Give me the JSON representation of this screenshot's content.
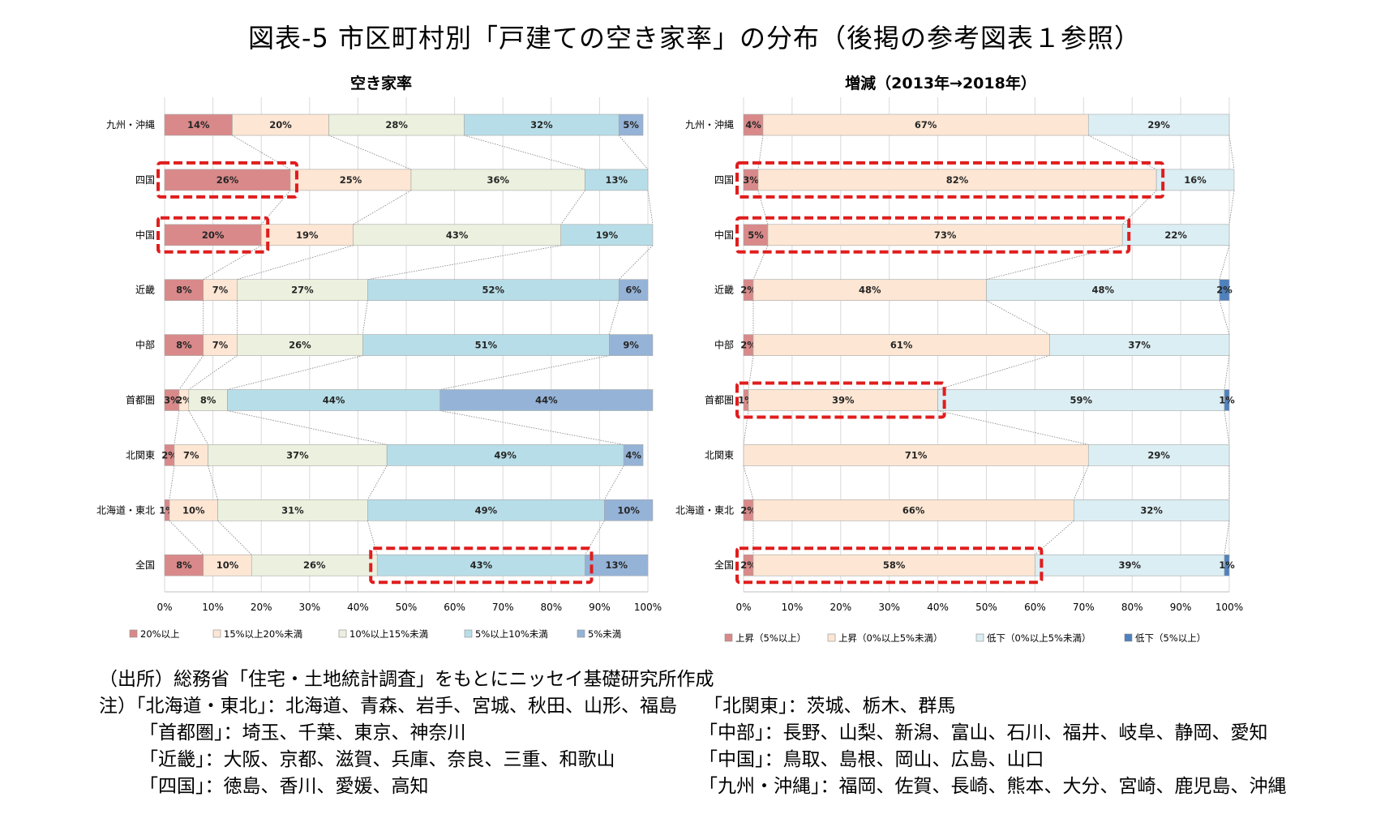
{
  "title": "図表-5  市区町村別「戸建ての空き家率」の分布（後掲の参考図表１参照）",
  "chart_data": [
    {
      "type": "bar",
      "stacked": "100%",
      "orientation": "horizontal",
      "title": "空き家率",
      "categories": [
        "九州・沖縄",
        "四国",
        "中国",
        "近畿",
        "中部",
        "首都圏",
        "北関東",
        "北海道・東北",
        "全国"
      ],
      "series": [
        {
          "name": "20%以上",
          "color": "#d98989",
          "values": [
            14,
            26,
            20,
            8,
            8,
            3,
            2,
            1,
            8
          ]
        },
        {
          "name": "15%以上20%未満",
          "color": "#fde6d3",
          "values": [
            20,
            25,
            19,
            7,
            7,
            2,
            7,
            10,
            10
          ]
        },
        {
          "name": "10%以上15%未満",
          "color": "#ebf1de",
          "values": [
            28,
            36,
            43,
            27,
            26,
            8,
            37,
            31,
            26
          ]
        },
        {
          "name": "5%以上10%未満",
          "color": "#b7dee8",
          "values": [
            32,
            13,
            19,
            52,
            51,
            44,
            49,
            49,
            43
          ]
        },
        {
          "name": "5%未満",
          "color": "#95b3d7",
          "values": [
            5,
            0,
            0,
            6,
            9,
            44,
            4,
            10,
            13
          ]
        }
      ],
      "xlim": [
        0,
        100
      ],
      "xticks": [
        "0%",
        "10%",
        "20%",
        "30%",
        "40%",
        "50%",
        "60%",
        "70%",
        "80%",
        "90%",
        "100%"
      ],
      "legend": "bottom",
      "highlights": [
        {
          "category": "四国",
          "from": 0,
          "to": 26
        },
        {
          "category": "中国",
          "from": 0,
          "to": 20
        },
        {
          "category": "全国",
          "from": 44,
          "to": 87
        }
      ]
    },
    {
      "type": "bar",
      "stacked": "100%",
      "orientation": "horizontal",
      "title": "増減（2013年→2018年）",
      "categories": [
        "九州・沖縄",
        "四国",
        "中国",
        "近畿",
        "中部",
        "首都圏",
        "北関東",
        "北海道・東北",
        "全国"
      ],
      "series": [
        {
          "name": "上昇（5%以上）",
          "color": "#d98989",
          "values": [
            4,
            3,
            5,
            2,
            2,
            1,
            0,
            2,
            2
          ]
        },
        {
          "name": "上昇（0%以上5%未満）",
          "color": "#fde6d3",
          "values": [
            67,
            82,
            73,
            48,
            61,
            39,
            71,
            66,
            58
          ]
        },
        {
          "name": "低下（0%以上5%未満）",
          "color": "#dbeef3",
          "values": [
            29,
            16,
            22,
            48,
            37,
            59,
            29,
            32,
            39
          ]
        },
        {
          "name": "低下（5%以上）",
          "color": "#4f81bd",
          "values": [
            0,
            0,
            0,
            2,
            0,
            1,
            0,
            0,
            1
          ]
        }
      ],
      "xlim": [
        0,
        100
      ],
      "xticks": [
        "0%",
        "10%",
        "20%",
        "30%",
        "40%",
        "50%",
        "60%",
        "70%",
        "80%",
        "90%",
        "100%"
      ],
      "legend": "bottom",
      "highlights": [
        {
          "category": "四国",
          "from": 0,
          "to": 85
        },
        {
          "category": "中国",
          "from": 0,
          "to": 78
        },
        {
          "category": "首都圏",
          "from": 0,
          "to": 40
        },
        {
          "category": "全国",
          "from": 0,
          "to": 60
        }
      ]
    }
  ],
  "notes": {
    "source": "（出所）総務省「住宅・土地統計調査」をもとにニッセイ基礎研究所作成",
    "note_hokkaido": "注）「北海道・東北」：北海道、青森、岩手、宮城、秋田、山形、福島",
    "note_kitakanto": "「北関東」：茨城、栃木、群馬",
    "note_shutoken": "「首都圏」：埼玉、千葉、東京、神奈川",
    "note_chubu": "「中部」：長野、山梨、新潟、富山、石川、福井、岐阜、静岡、愛知",
    "note_kinki": "「近畿」：大阪、京都、滋賀、兵庫、奈良、三重、和歌山",
    "note_chugoku": "「中国」：鳥取、島根、岡山、広島、山口",
    "note_shikoku": "「四国」：徳島、香川、愛媛、高知",
    "note_kyushu": "「九州・沖縄」：福岡、佐賀、長崎、熊本、大分、宮崎、鹿児島、沖縄"
  }
}
